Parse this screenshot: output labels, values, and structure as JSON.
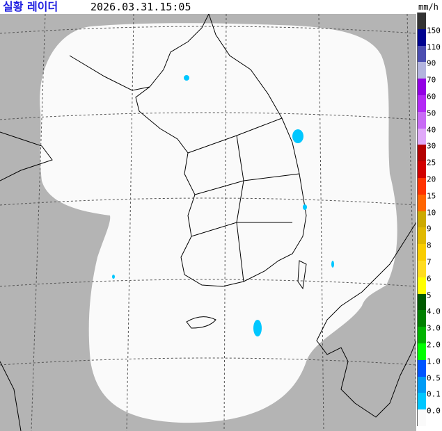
{
  "header": {
    "title": "실황 레이더",
    "timestamp": "2026.03.31.15:05",
    "unit": "mm/h"
  },
  "map": {
    "background_color": "#b4b4b4",
    "coverage_color": "#fafafa",
    "coastline_color": "#000000",
    "grid": "dashed"
  },
  "legend": {
    "colors": [
      "#333333",
      "#000390",
      "#4c4eb1",
      "#b3b4de",
      "#9300e4",
      "#b329f5",
      "#c86bf5",
      "#e0a9f9",
      "#b40000",
      "#d20000",
      "#ff3300",
      "#ff6600",
      "#ccaa00",
      "#e0b900",
      "#f9cd00",
      "#ffdc1f",
      "#ffff00",
      "#005a00",
      "#008000",
      "#00b300",
      "#00ff00",
      "#0055ff",
      "#009bf5",
      "#00c7ff",
      "#fafafa"
    ],
    "labels": [
      "150",
      "110",
      "90",
      "70",
      "60",
      "50",
      "40",
      "30",
      "25",
      "20",
      "15",
      "10",
      "9",
      "8",
      "7",
      "6",
      "5",
      "4.0",
      "3.0",
      "2.0",
      "1.0",
      "0.5",
      "0.1",
      "0.0"
    ]
  }
}
